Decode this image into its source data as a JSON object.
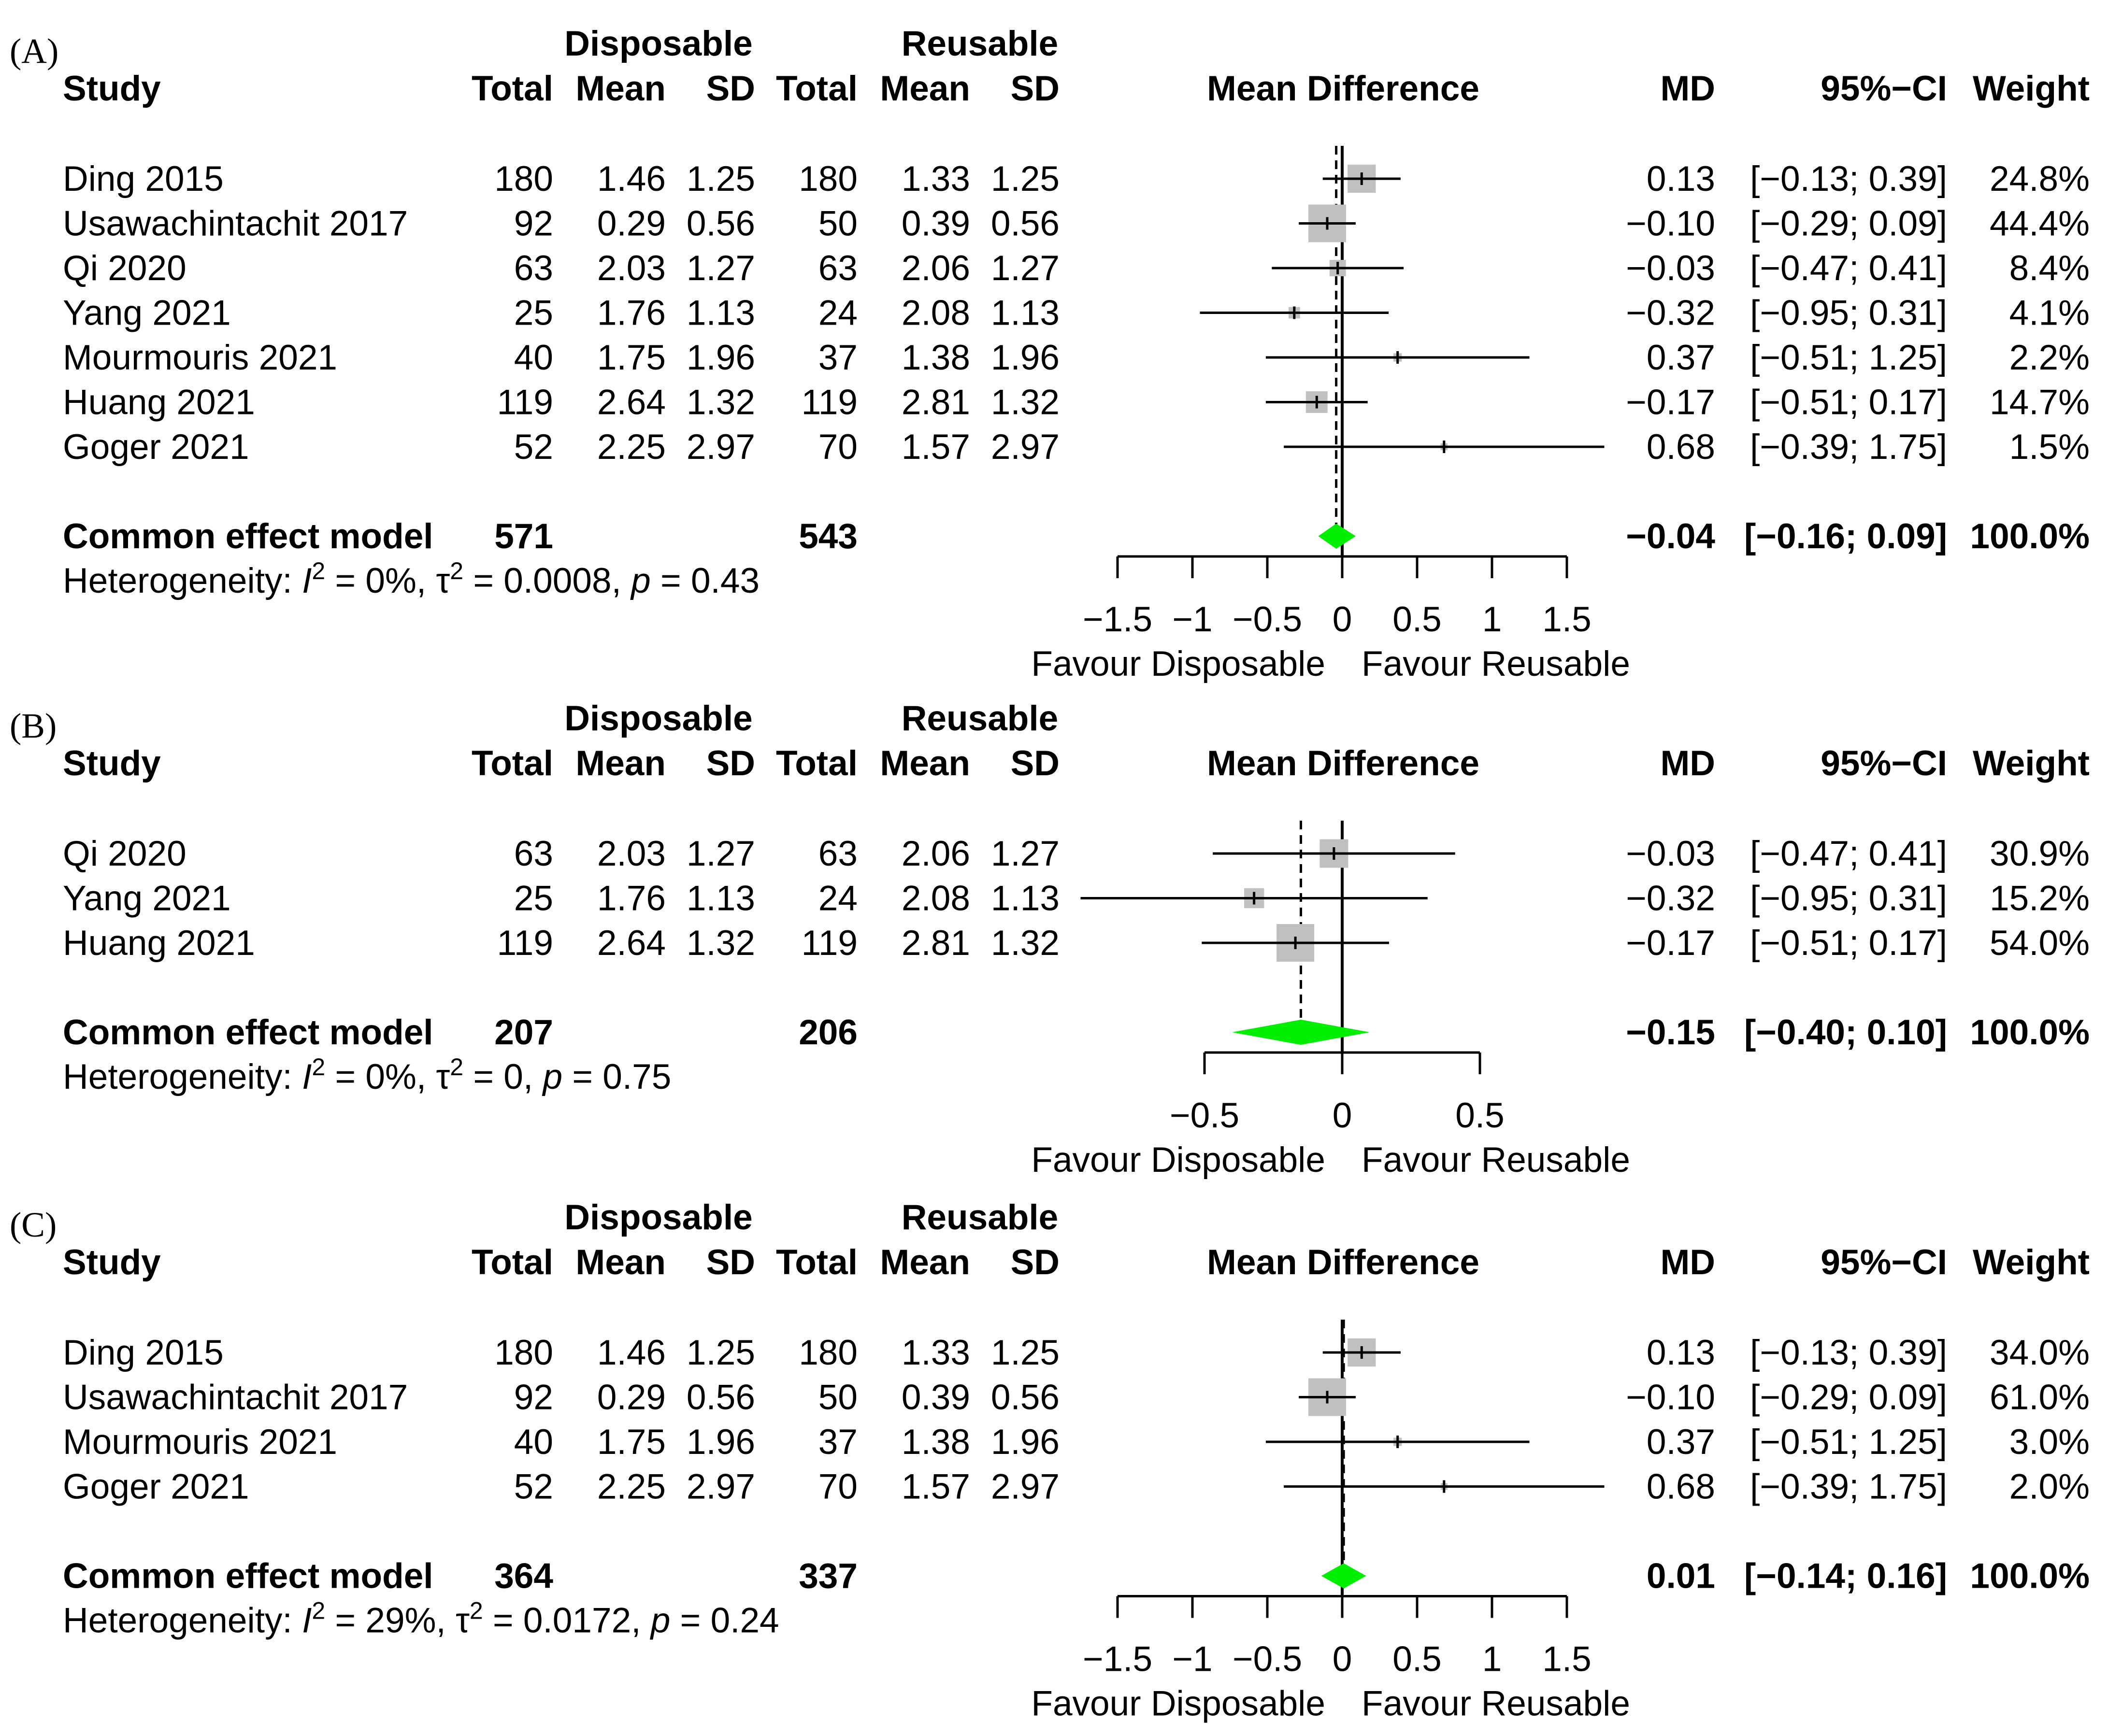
{
  "chart_data": [
    {
      "type": "forest",
      "panel_label": "(A)",
      "headers": {
        "group1": "Disposable",
        "group2": "Reusable",
        "study": "Study",
        "total": "Total",
        "mean": "Mean",
        "sd": "SD",
        "plot_title": "Mean Difference",
        "md": "MD",
        "ci": "95%−CI",
        "weight": "Weight"
      },
      "studies": [
        {
          "name": "Ding 2015",
          "d_total": "180",
          "d_mean": "1.46",
          "d_sd": "1.25",
          "r_total": "180",
          "r_mean": "1.33",
          "r_sd": "1.25",
          "md": 0.13,
          "lower": -0.13,
          "upper": 0.39,
          "weight_pct": 24.8,
          "md_text": "0.13",
          "ci_text": "[−0.13; 0.39]",
          "weight_text": "24.8%"
        },
        {
          "name": "Usawachintachit 2017",
          "d_total": "92",
          "d_mean": "0.29",
          "d_sd": "0.56",
          "r_total": "50",
          "r_mean": "0.39",
          "r_sd": "0.56",
          "md": -0.1,
          "lower": -0.29,
          "upper": 0.09,
          "weight_pct": 44.4,
          "md_text": "−0.10",
          "ci_text": "[−0.29; 0.09]",
          "weight_text": "44.4%"
        },
        {
          "name": "Qi 2020",
          "d_total": "63",
          "d_mean": "2.03",
          "d_sd": "1.27",
          "r_total": "63",
          "r_mean": "2.06",
          "r_sd": "1.27",
          "md": -0.03,
          "lower": -0.47,
          "upper": 0.41,
          "weight_pct": 8.4,
          "md_text": "−0.03",
          "ci_text": "[−0.47; 0.41]",
          "weight_text": "8.4%"
        },
        {
          "name": "Yang 2021",
          "d_total": "25",
          "d_mean": "1.76",
          "d_sd": "1.13",
          "r_total": "24",
          "r_mean": "2.08",
          "r_sd": "1.13",
          "md": -0.32,
          "lower": -0.95,
          "upper": 0.31,
          "weight_pct": 4.1,
          "md_text": "−0.32",
          "ci_text": "[−0.95; 0.31]",
          "weight_text": "4.1%"
        },
        {
          "name": "Mourmouris 2021",
          "d_total": "40",
          "d_mean": "1.75",
          "d_sd": "1.96",
          "r_total": "37",
          "r_mean": "1.38",
          "r_sd": "1.96",
          "md": 0.37,
          "lower": -0.51,
          "upper": 1.25,
          "weight_pct": 2.2,
          "md_text": "0.37",
          "ci_text": "[−0.51; 1.25]",
          "weight_text": "2.2%"
        },
        {
          "name": "Huang 2021",
          "d_total": "119",
          "d_mean": "2.64",
          "d_sd": "1.32",
          "r_total": "119",
          "r_mean": "2.81",
          "r_sd": "1.32",
          "md": -0.17,
          "lower": -0.51,
          "upper": 0.17,
          "weight_pct": 14.7,
          "md_text": "−0.17",
          "ci_text": "[−0.51; 0.17]",
          "weight_text": "14.7%"
        },
        {
          "name": "Goger 2021",
          "d_total": "52",
          "d_mean": "2.25",
          "d_sd": "2.97",
          "r_total": "70",
          "r_mean": "1.57",
          "r_sd": "2.97",
          "md": 0.68,
          "lower": -0.39,
          "upper": 1.75,
          "weight_pct": 1.5,
          "md_text": "0.68",
          "ci_text": "[−0.39; 1.75]",
          "weight_text": "1.5%"
        }
      ],
      "pooled": {
        "name": "Common effect model",
        "d_total": "571",
        "r_total": "543",
        "md": -0.04,
        "lower": -0.16,
        "upper": 0.09,
        "md_text": "−0.04",
        "ci_text": "[−0.16; 0.09]",
        "weight_text": "100.0%"
      },
      "heterogeneity": {
        "prefix": "Heterogeneity: ",
        "i2": "I",
        "i2_sup": "2",
        "i2_val": " = 0%, ",
        "tau": "τ",
        "tau_sup": "2",
        "tau_val": " = 0.0008, ",
        "p": "p",
        "p_val": " = 0.43"
      },
      "x_axis": {
        "range": [
          -1.5,
          1.5
        ],
        "ticks": [
          -1.5,
          -1,
          -0.5,
          0,
          0.5,
          1,
          1.5
        ],
        "tick_labels": [
          "−1.5",
          "−1",
          "−0.5",
          "0",
          "0.5",
          "1",
          "1.5"
        ],
        "label_left": "Favour Disposable",
        "label_right": "Favour Reusable"
      }
    },
    {
      "type": "forest",
      "panel_label": "(B)",
      "headers": {
        "group1": "Disposable",
        "group2": "Reusable",
        "study": "Study",
        "total": "Total",
        "mean": "Mean",
        "sd": "SD",
        "plot_title": "Mean Difference",
        "md": "MD",
        "ci": "95%−CI",
        "weight": "Weight"
      },
      "studies": [
        {
          "name": "Qi 2020",
          "d_total": "63",
          "d_mean": "2.03",
          "d_sd": "1.27",
          "r_total": "63",
          "r_mean": "2.06",
          "r_sd": "1.27",
          "md": -0.03,
          "lower": -0.47,
          "upper": 0.41,
          "weight_pct": 30.9,
          "md_text": "−0.03",
          "ci_text": "[−0.47; 0.41]",
          "weight_text": "30.9%"
        },
        {
          "name": "Yang 2021",
          "d_total": "25",
          "d_mean": "1.76",
          "d_sd": "1.13",
          "r_total": "24",
          "r_mean": "2.08",
          "r_sd": "1.13",
          "md": -0.32,
          "lower": -0.95,
          "upper": 0.31,
          "weight_pct": 15.2,
          "md_text": "−0.32",
          "ci_text": "[−0.95; 0.31]",
          "weight_text": "15.2%"
        },
        {
          "name": "Huang 2021",
          "d_total": "119",
          "d_mean": "2.64",
          "d_sd": "1.32",
          "r_total": "119",
          "r_mean": "2.81",
          "r_sd": "1.32",
          "md": -0.17,
          "lower": -0.51,
          "upper": 0.17,
          "weight_pct": 54.0,
          "md_text": "−0.17",
          "ci_text": "[−0.51; 0.17]",
          "weight_text": "54.0%"
        }
      ],
      "pooled": {
        "name": "Common effect model",
        "d_total": "207",
        "r_total": "206",
        "md": -0.15,
        "lower": -0.4,
        "upper": 0.1,
        "md_text": "−0.15",
        "ci_text": "[−0.40; 0.10]",
        "weight_text": "100.0%"
      },
      "heterogeneity": {
        "prefix": "Heterogeneity: ",
        "i2": "I",
        "i2_sup": "2",
        "i2_val": " = 0%, ",
        "tau": "τ",
        "tau_sup": "2",
        "tau_val": " = 0, ",
        "p": "p",
        "p_val": " = 0.75"
      },
      "x_axis": {
        "range": [
          -0.5,
          0.5
        ],
        "ticks": [
          -0.5,
          0,
          0.5
        ],
        "tick_labels": [
          "−0.5",
          "0",
          "0.5"
        ],
        "label_left": "Favour Disposable",
        "label_right": "Favour Reusable"
      }
    },
    {
      "type": "forest",
      "panel_label": "(C)",
      "headers": {
        "group1": "Disposable",
        "group2": "Reusable",
        "study": "Study",
        "total": "Total",
        "mean": "Mean",
        "sd": "SD",
        "plot_title": "Mean Difference",
        "md": "MD",
        "ci": "95%−CI",
        "weight": "Weight"
      },
      "studies": [
        {
          "name": "Ding 2015",
          "d_total": "180",
          "d_mean": "1.46",
          "d_sd": "1.25",
          "r_total": "180",
          "r_mean": "1.33",
          "r_sd": "1.25",
          "md": 0.13,
          "lower": -0.13,
          "upper": 0.39,
          "weight_pct": 34.0,
          "md_text": "0.13",
          "ci_text": "[−0.13; 0.39]",
          "weight_text": "34.0%"
        },
        {
          "name": "Usawachintachit 2017",
          "d_total": "92",
          "d_mean": "0.29",
          "d_sd": "0.56",
          "r_total": "50",
          "r_mean": "0.39",
          "r_sd": "0.56",
          "md": -0.1,
          "lower": -0.29,
          "upper": 0.09,
          "weight_pct": 61.0,
          "md_text": "−0.10",
          "ci_text": "[−0.29; 0.09]",
          "weight_text": "61.0%"
        },
        {
          "name": "Mourmouris 2021",
          "d_total": "40",
          "d_mean": "1.75",
          "d_sd": "1.96",
          "r_total": "37",
          "r_mean": "1.38",
          "r_sd": "1.96",
          "md": 0.37,
          "lower": -0.51,
          "upper": 1.25,
          "weight_pct": 3.0,
          "md_text": "0.37",
          "ci_text": "[−0.51; 1.25]",
          "weight_text": "3.0%"
        },
        {
          "name": "Goger 2021",
          "d_total": "52",
          "d_mean": "2.25",
          "d_sd": "2.97",
          "r_total": "70",
          "r_mean": "1.57",
          "r_sd": "2.97",
          "md": 0.68,
          "lower": -0.39,
          "upper": 1.75,
          "weight_pct": 2.0,
          "md_text": "0.68",
          "ci_text": "[−0.39; 1.75]",
          "weight_text": "2.0%"
        }
      ],
      "pooled": {
        "name": "Common effect model",
        "d_total": "364",
        "r_total": "337",
        "md": 0.01,
        "lower": -0.14,
        "upper": 0.16,
        "md_text": "0.01",
        "ci_text": "[−0.14; 0.16]",
        "weight_text": "100.0%"
      },
      "heterogeneity": {
        "prefix": "Heterogeneity: ",
        "i2": "I",
        "i2_sup": "2",
        "i2_val": " = 29%, ",
        "tau": "τ",
        "tau_sup": "2",
        "tau_val": " = 0.0172, ",
        "p": "p",
        "p_val": " = 0.24"
      },
      "x_axis": {
        "range": [
          -1.5,
          1.5
        ],
        "ticks": [
          -1.5,
          -1,
          -0.5,
          0,
          0.5,
          1,
          1.5
        ],
        "tick_labels": [
          "−1.5",
          "−1",
          "−0.5",
          "0",
          "0.5",
          "1",
          "1.5"
        ],
        "label_left": "Favour Disposable",
        "label_right": "Favour Reusable"
      }
    }
  ]
}
